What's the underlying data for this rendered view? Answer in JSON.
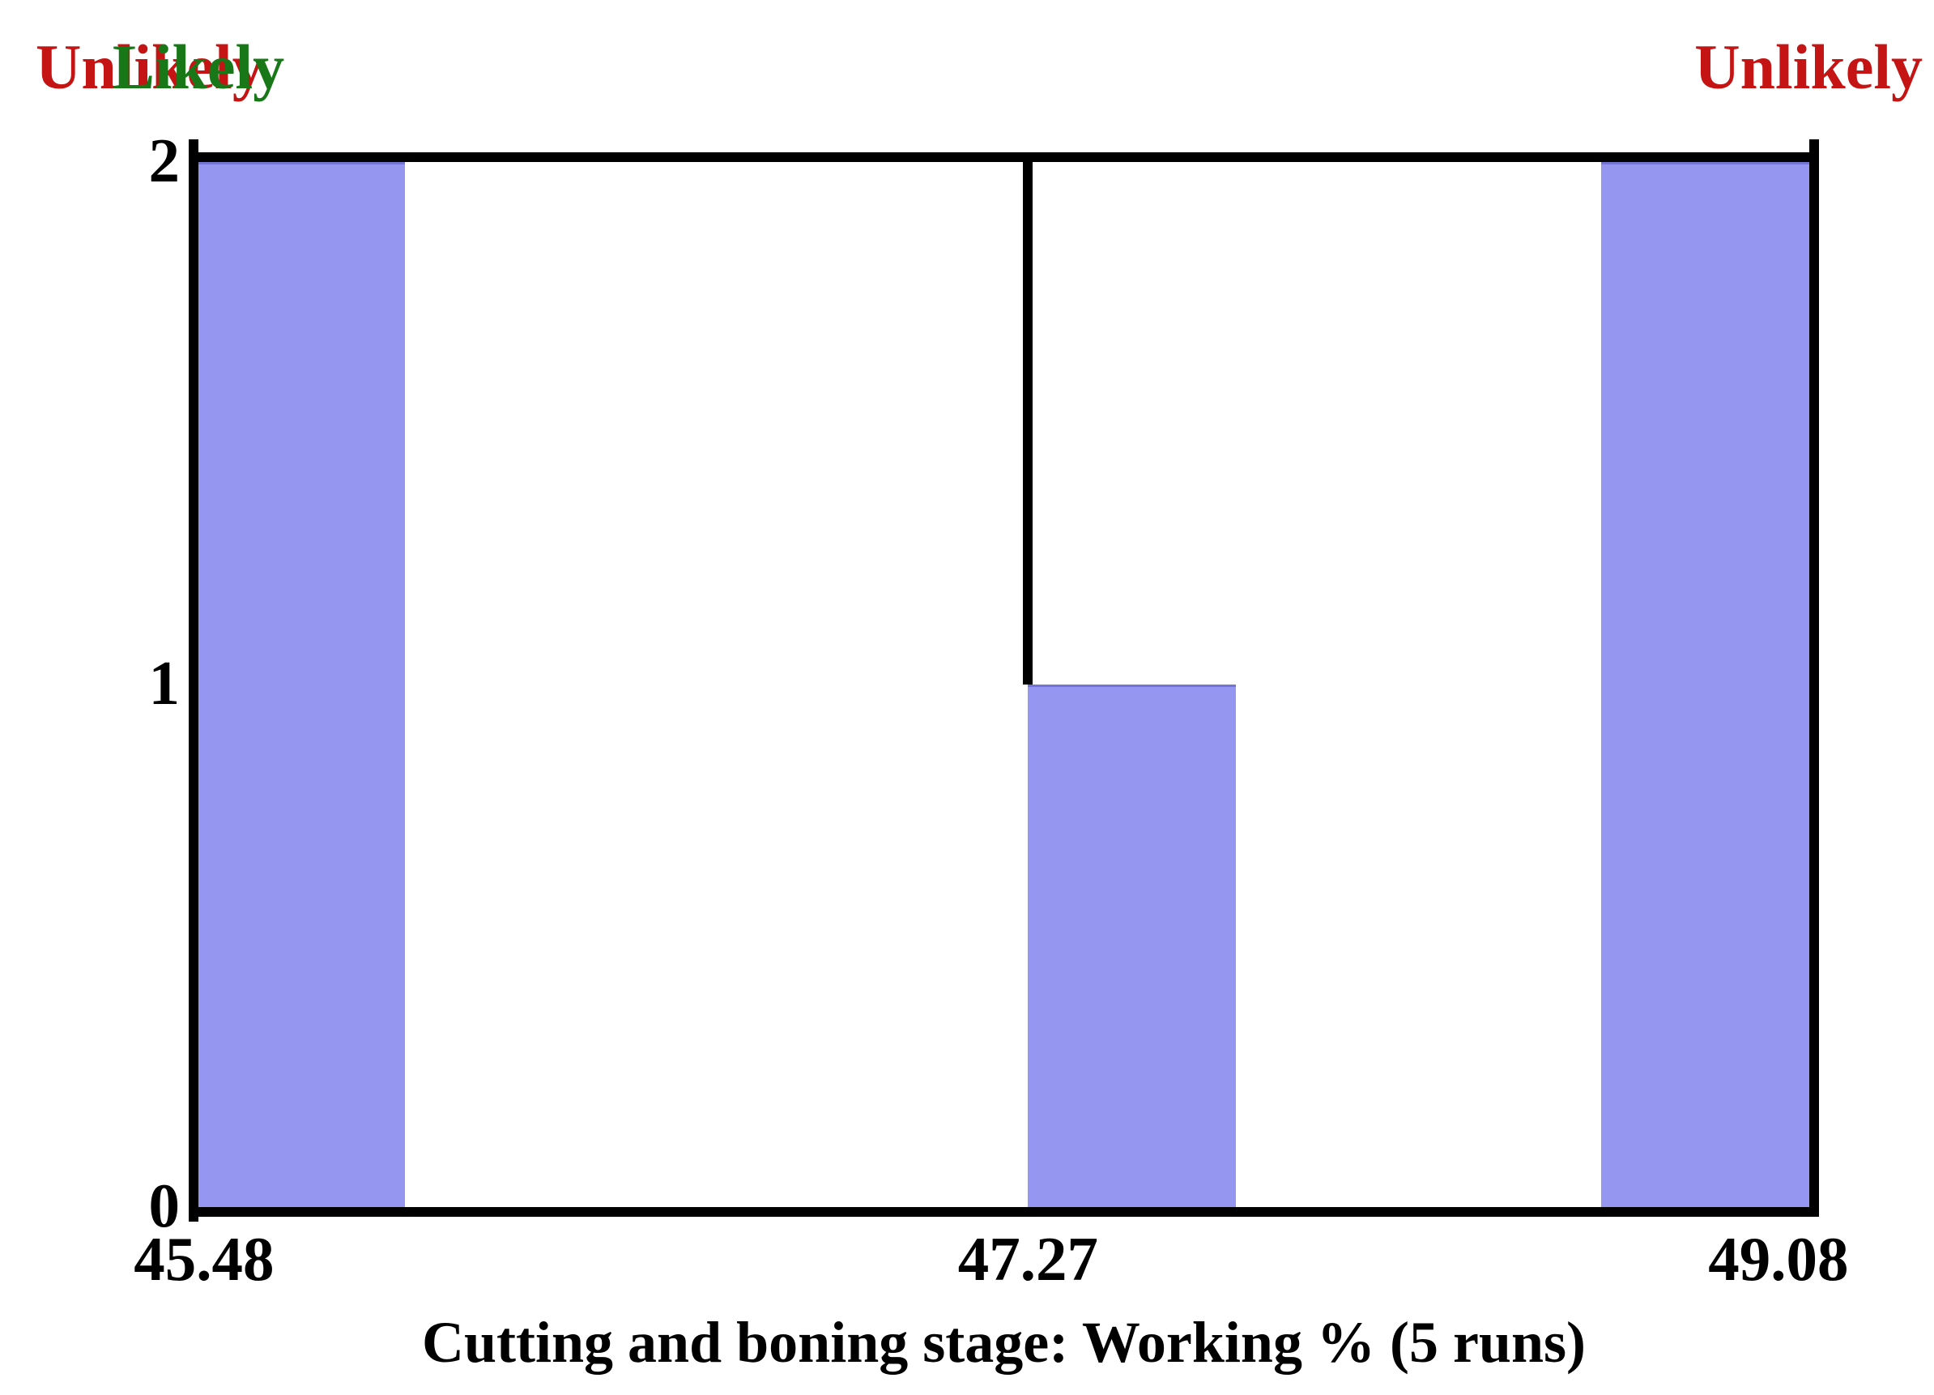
{
  "annotations": {
    "left": {
      "text": "Unlikely",
      "color": "#c41414"
    },
    "center": {
      "text": "Likely",
      "color": "#187818"
    },
    "right": {
      "text": "Unlikely",
      "color": "#c41414"
    }
  },
  "chart_data": {
    "type": "bar",
    "subtype": "histogram",
    "title": "",
    "xlabel": "Cutting and boning stage: Working % (5 runs)",
    "ylabel": "",
    "xlim": [
      45.48,
      49.08
    ],
    "ylim": [
      0,
      2
    ],
    "grid": false,
    "legend": null,
    "total_runs": 5,
    "x_ticks": [
      {
        "label": "45.48",
        "frac": 0.0
      },
      {
        "label": "47.27",
        "frac": 0.515
      },
      {
        "label": "49.08",
        "frac": 1.0
      }
    ],
    "y_ticks": [
      {
        "label": "0",
        "value": 0
      },
      {
        "label": "1",
        "value": 1
      },
      {
        "label": "2",
        "value": 2
      }
    ],
    "bars": [
      {
        "left_frac": 0.0,
        "width_frac": 0.128,
        "count": 2,
        "bin_start": 45.48,
        "bin_end": 45.94
      },
      {
        "left_frac": 0.515,
        "width_frac": 0.129,
        "count": 1,
        "bin_start": 47.27,
        "bin_end": 47.73
      },
      {
        "left_frac": 0.871,
        "width_frac": 0.129,
        "count": 2,
        "bin_start": 48.62,
        "bin_end": 49.08
      }
    ],
    "reference_line": {
      "x": 47.27,
      "frac": 0.515,
      "from_count": 1,
      "to_count": 2
    },
    "bar_color": "#9496f0",
    "axis_color": "#000000",
    "text_color": "#000000"
  }
}
